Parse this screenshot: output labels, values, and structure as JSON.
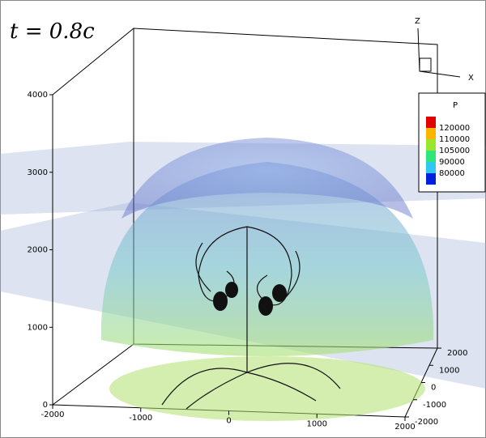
{
  "chart_data": {
    "type": "volume3d",
    "annotation": "t = 0.8c",
    "x_label": "X",
    "z_label": "Z",
    "xlim": [
      -2000,
      2000
    ],
    "xticks": [
      -2000,
      -1000,
      0,
      1000,
      2000
    ],
    "ylim": [
      -2000,
      2000
    ],
    "yticks": [
      -2000,
      -1000,
      0,
      1000,
      2000
    ],
    "zlim": [
      0,
      4000
    ],
    "zticks": [
      0,
      1000,
      2000,
      3000,
      4000
    ],
    "legend": {
      "title": "P",
      "levels": [
        120000,
        110000,
        105000,
        90000,
        80000
      ],
      "colors": [
        "#e00000",
        "#ffb400",
        "#9ae62e",
        "#2ee67a",
        "#2ec8f0",
        "#0020e0"
      ]
    }
  }
}
